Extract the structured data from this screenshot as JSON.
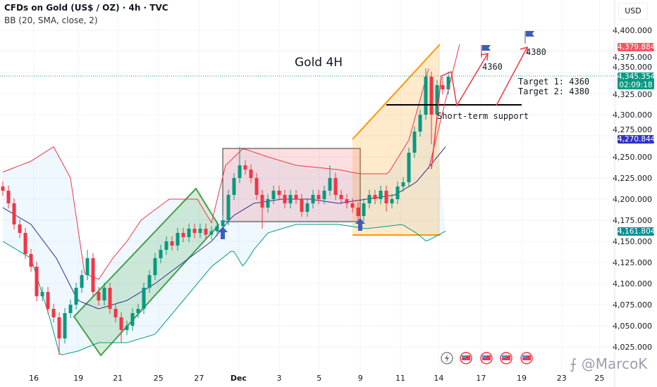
{
  "header": {
    "symbol_line": "CFDs on Gold (US$ / OZ) · 4h · TVC",
    "indicator_line": "BB (20, SMA, close, 2)",
    "currency": "USD"
  },
  "chart_data": {
    "type": "candlestick",
    "title": "Gold 4H",
    "title_color": "#f23645",
    "ylim": [
      4012,
      4430
    ],
    "y_ticks": [
      "4,400.000",
      "4,375.000",
      "4,350.000",
      "4,325.000",
      "4,300.000",
      "4,275.000",
      "4,250.000",
      "4,225.000",
      "4,200.000",
      "4,175.000",
      "4,150.000",
      "4,125.000",
      "4,100.000",
      "4,075.000",
      "4,050.000",
      "4,025.000"
    ],
    "y_tick_values": [
      4400,
      4375,
      4350,
      4325,
      4300,
      4275,
      4250,
      4225,
      4200,
      4175,
      4150,
      4125,
      4100,
      4075,
      4050,
      4025
    ],
    "x_ticks": [
      {
        "label": "16",
        "candle": 5.5
      },
      {
        "label": "19",
        "candle": 13.4
      },
      {
        "label": "21",
        "candle": 20.4
      },
      {
        "label": "25",
        "candle": 27.6
      },
      {
        "label": "27",
        "candle": 34.8
      },
      {
        "label": "Dec",
        "candle": 41.8
      },
      {
        "label": "3",
        "candle": 49
      },
      {
        "label": "5",
        "candle": 56.1
      },
      {
        "label": "9",
        "candle": 63.4
      },
      {
        "label": "11",
        "candle": 70.5
      },
      {
        "label": "14",
        "candle": 77.3
      },
      {
        "label": "17",
        "candle": 84.8
      },
      {
        "label": "19",
        "candle": 92
      },
      {
        "label": "23",
        "candle": 99.1
      },
      {
        "label": "25",
        "candle": 105.8
      }
    ],
    "grid": true,
    "colors": {
      "up": "#089981",
      "down": "#f23645",
      "bb_upper": "#f23645",
      "bb_basis": "#2a2e8f",
      "bb_lower": "#089981",
      "bb_fill": "#2196f3"
    },
    "open": [
      4215,
      4210,
      4195,
      4170,
      4160,
      4135,
      4120,
      4085,
      4090,
      4070,
      4060,
      4035,
      4065,
      4075,
      4095,
      4110,
      4130,
      4090,
      4080,
      4095,
      4070,
      4060,
      4045,
      4050,
      4065,
      4070,
      4095,
      4110,
      4130,
      4140,
      4150,
      4145,
      4160,
      4155,
      4165,
      4160,
      4165,
      4158,
      4162,
      4168,
      4175,
      4205,
      4225,
      4240,
      4235,
      4225,
      4205,
      4190,
      4200,
      4210,
      4205,
      4195,
      4205,
      4200,
      4185,
      4195,
      4205,
      4200,
      4210,
      4225,
      4205,
      4200,
      4195,
      4190,
      4180,
      4195,
      4205,
      4200,
      4210,
      4195,
      4200,
      4215,
      4220,
      4255,
      4280,
      4300,
      4345,
      4300,
      4335,
      4330
    ],
    "high": [
      4221,
      4216,
      4201,
      4176,
      4166,
      4141,
      4126,
      4096,
      4096,
      4076,
      4066,
      4071,
      4081,
      4101,
      4116,
      4140,
      4136,
      4096,
      4101,
      4101,
      4076,
      4066,
      4056,
      4071,
      4076,
      4101,
      4116,
      4136,
      4146,
      4156,
      4156,
      4166,
      4166,
      4171,
      4171,
      4171,
      4171,
      4168,
      4174,
      4181,
      4211,
      4231,
      4262,
      4246,
      4241,
      4231,
      4211,
      4206,
      4216,
      4216,
      4211,
      4211,
      4211,
      4206,
      4201,
      4211,
      4211,
      4216,
      4240,
      4231,
      4211,
      4206,
      4201,
      4196,
      4201,
      4211,
      4211,
      4216,
      4216,
      4206,
      4221,
      4226,
      4261,
      4286,
      4306,
      4355,
      4351,
      4341,
      4345,
      4351
    ],
    "low": [
      4204,
      4189,
      4164,
      4154,
      4129,
      4114,
      4079,
      4079,
      4064,
      4054,
      4015,
      4029,
      4059,
      4069,
      4089,
      4104,
      4084,
      4074,
      4074,
      4064,
      4054,
      4030,
      4039,
      4044,
      4059,
      4064,
      4089,
      4104,
      4124,
      4134,
      4139,
      4139,
      4149,
      4149,
      4154,
      4154,
      4152,
      4152,
      4156,
      4162,
      4169,
      4199,
      4219,
      4229,
      4219,
      4199,
      4165,
      4184,
      4194,
      4199,
      4189,
      4189,
      4194,
      4179,
      4179,
      4189,
      4194,
      4194,
      4204,
      4199,
      4194,
      4189,
      4184,
      4174,
      4174,
      4189,
      4194,
      4194,
      4185,
      4189,
      4194,
      4209,
      4214,
      4249,
      4274,
      4294,
      4265,
      4294,
      4324,
      4324
    ],
    "close": [
      4210,
      4195,
      4170,
      4160,
      4135,
      4120,
      4085,
      4090,
      4070,
      4060,
      4035,
      4065,
      4075,
      4095,
      4110,
      4130,
      4090,
      4080,
      4095,
      4070,
      4060,
      4045,
      4050,
      4065,
      4070,
      4095,
      4110,
      4130,
      4140,
      4150,
      4145,
      4160,
      4155,
      4165,
      4160,
      4165,
      4158,
      4162,
      4168,
      4175,
      4205,
      4225,
      4240,
      4235,
      4225,
      4205,
      4190,
      4200,
      4210,
      4205,
      4195,
      4205,
      4200,
      4185,
      4195,
      4205,
      4200,
      4210,
      4225,
      4205,
      4200,
      4195,
      4190,
      4180,
      4195,
      4205,
      4200,
      4210,
      4195,
      4200,
      4215,
      4220,
      4255,
      4280,
      4300,
      4345,
      4300,
      4335,
      4330,
      4345
    ],
    "bb_upper": [
      [
        0,
        4232
      ],
      [
        5,
        4245
      ],
      [
        9,
        4262
      ],
      [
        12,
        4225
      ],
      [
        14.5,
        4112
      ],
      [
        17,
        4105
      ],
      [
        19.5,
        4130
      ],
      [
        22,
        4150
      ],
      [
        24.5,
        4175
      ],
      [
        29.5,
        4200
      ],
      [
        34.5,
        4200
      ],
      [
        37,
        4172
      ],
      [
        39.5,
        4240
      ],
      [
        42.6,
        4260
      ],
      [
        47,
        4250
      ],
      [
        52,
        4240
      ],
      [
        59.5,
        4235
      ],
      [
        63.3,
        4230
      ],
      [
        68.3,
        4230
      ],
      [
        72,
        4270
      ],
      [
        74.5,
        4330
      ],
      [
        75.8,
        4362
      ]
    ],
    "bb_basis": [
      [
        0,
        4190
      ],
      [
        5,
        4170
      ],
      [
        9.5,
        4130
      ],
      [
        13.3,
        4080
      ],
      [
        17,
        4070
      ],
      [
        22,
        4080
      ],
      [
        27,
        4100
      ],
      [
        32,
        4125
      ],
      [
        37,
        4150
      ],
      [
        40.8,
        4180
      ],
      [
        44.5,
        4195
      ],
      [
        49.5,
        4200
      ],
      [
        54.5,
        4200
      ],
      [
        59.5,
        4195
      ],
      [
        64.5,
        4200
      ],
      [
        69.5,
        4205
      ],
      [
        73.3,
        4220
      ],
      [
        75.8,
        4240
      ],
      [
        78.5,
        4262
      ]
    ],
    "bb_lower": [
      [
        0,
        4150
      ],
      [
        5,
        4130
      ],
      [
        8.3,
        4060
      ],
      [
        10.1,
        4015
      ],
      [
        13.3,
        4020
      ],
      [
        17,
        4030
      ],
      [
        22,
        4030
      ],
      [
        27,
        4040
      ],
      [
        32,
        4080
      ],
      [
        37,
        4120
      ],
      [
        40.8,
        4140
      ],
      [
        42.6,
        4120
      ],
      [
        44.5,
        4140
      ],
      [
        47,
        4160
      ],
      [
        52,
        4170
      ],
      [
        59.5,
        4170
      ],
      [
        64.5,
        4165
      ],
      [
        70.8,
        4170
      ],
      [
        73.3,
        4160
      ],
      [
        75.1,
        4150
      ],
      [
        78.5,
        4162
      ]
    ]
  },
  "price_labels": [
    {
      "value": "4,379.884",
      "color": "#f7525f",
      "price": 4379.884
    },
    {
      "value": "4,345.354",
      "sub": "02:09:18",
      "color": "#089981",
      "price": 4345.354
    },
    {
      "value": "4,270.844",
      "color": "#2f33c8",
      "price": 4270.844
    },
    {
      "value": "4,161.804",
      "color": "#0f8f94",
      "price": 4161.804
    }
  ],
  "annotations": {
    "title": "Gold 4H",
    "flag1": "4360",
    "flag2": "4380",
    "target1": "Target 1: 4360",
    "target2": "Target 2: 4380",
    "support": "Short-term support"
  },
  "events": [
    "lightning-icon",
    "us-flag-icon",
    "us-flag-icon",
    "us-flag-icon",
    "us-flag-icon"
  ],
  "watermark": "@MarcoK"
}
